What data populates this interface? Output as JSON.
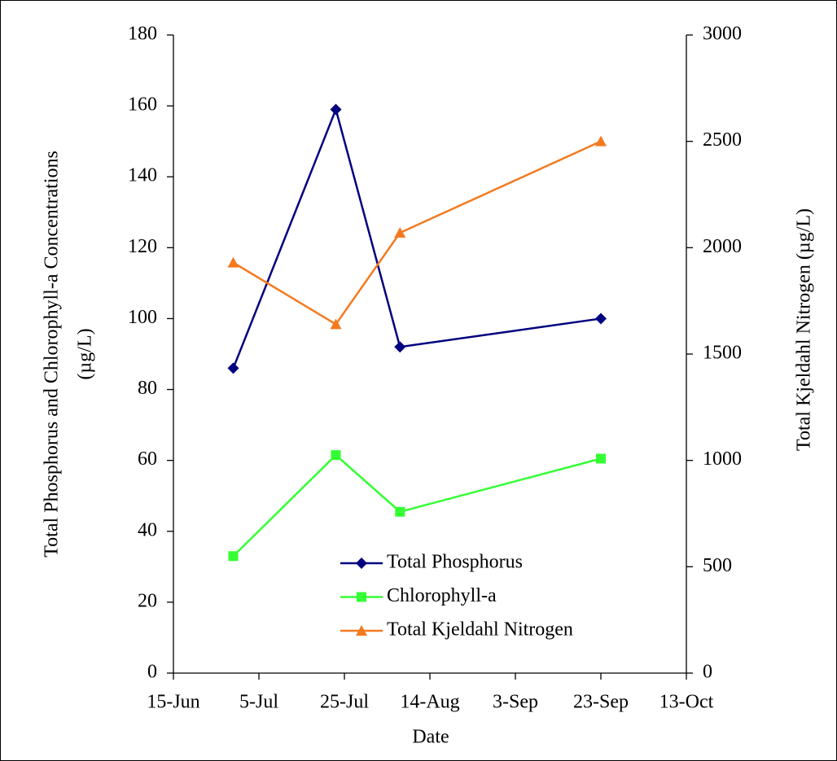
{
  "chart_data": {
    "type": "line",
    "x": [
      "29-Jun",
      "23-Jul",
      "7-Aug",
      "23-Sep"
    ],
    "xlim": [
      "15-Jun",
      "13-Oct"
    ],
    "xticks": [
      "15-Jun",
      "5-Jul",
      "25-Jul",
      "14-Aug",
      "3-Sep",
      "23-Sep",
      "13-Oct"
    ],
    "xlabel": "Date",
    "ylabel": [
      "Total Phosphorus and Chlorophyll-a Concentrations",
      "(µg/L)"
    ],
    "y2label": "Total Kjeldahl Nitrogen (µg/L)",
    "ylim": [
      0,
      180
    ],
    "yticks": [
      0,
      20,
      40,
      60,
      80,
      100,
      120,
      140,
      160,
      180
    ],
    "y2lim": [
      0,
      3000
    ],
    "y2ticks": [
      0,
      500,
      1000,
      1500,
      2000,
      2500,
      3000
    ],
    "grid": false,
    "legend": "lower center",
    "series": [
      {
        "name": "Total Phosphorus",
        "color": "#000080",
        "marker": "diamond",
        "values": [
          86,
          159,
          92,
          100
        ]
      },
      {
        "name": "Chlorophyll-a",
        "color": "#33ff33",
        "marker": "square",
        "values": [
          33,
          61.5,
          45.5,
          60.5
        ]
      },
      {
        "name": "Total Kjeldahl Nitrogen",
        "color": "#f47a20",
        "marker": "triangle",
        "axis": "y2",
        "values": [
          1930,
          1640,
          2070,
          2500
        ]
      }
    ]
  }
}
